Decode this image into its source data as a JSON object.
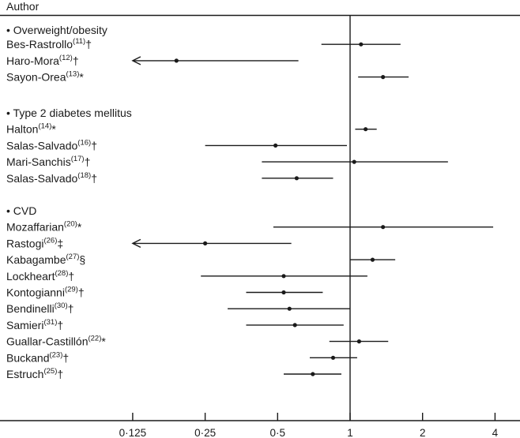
{
  "chart_data": {
    "type": "forest",
    "title": "",
    "column_header": "Author",
    "xscale": "log2",
    "xlim": [
      0.09,
      4.3
    ],
    "reference_value": 1,
    "xticks": [
      0.125,
      0.25,
      0.5,
      1,
      2,
      4
    ],
    "xtick_labels": [
      "0·125",
      "0·25",
      "0·5",
      "1",
      "2",
      "4"
    ],
    "groups": [
      {
        "name": "Overweight/obesity",
        "studies": [
          {
            "author": "Bes-Rastrollo",
            "ref": "(11)",
            "mark": "†",
            "estimate": 1.11,
            "lower": 0.76,
            "upper": 1.62,
            "lower_truncated": false
          },
          {
            "author": "Haro-Mora",
            "ref": "(12)",
            "mark": "†",
            "estimate": 0.19,
            "lower": 0.125,
            "upper": 0.61,
            "lower_truncated": true
          },
          {
            "author": "Sayon-Orea",
            "ref": "(13)",
            "mark": "*",
            "estimate": 1.37,
            "lower": 1.08,
            "upper": 1.75,
            "lower_truncated": false
          }
        ]
      },
      {
        "name": "Type 2 diabetes mellitus",
        "studies": [
          {
            "author": "Halton",
            "ref": "(14)",
            "mark": "*",
            "estimate": 1.16,
            "lower": 1.05,
            "upper": 1.29,
            "lower_truncated": false
          },
          {
            "author": "Salas-Salvado",
            "ref": "(16)",
            "mark": "†",
            "estimate": 0.49,
            "lower": 0.25,
            "upper": 0.97,
            "lower_truncated": false
          },
          {
            "author": "Mari-Sanchis",
            "ref": "(17)",
            "mark": "†",
            "estimate": 1.04,
            "lower": 0.43,
            "upper": 2.55,
            "lower_truncated": false
          },
          {
            "author": "Salas-Salvado",
            "ref": "(18)",
            "mark": "†",
            "estimate": 0.6,
            "lower": 0.43,
            "upper": 0.85,
            "lower_truncated": false
          }
        ]
      },
      {
        "name": "CVD",
        "studies": [
          {
            "author": "Mozaffarian",
            "ref": "(20)",
            "mark": "*",
            "estimate": 1.37,
            "lower": 0.48,
            "upper": 3.93,
            "lower_truncated": false
          },
          {
            "author": "Rastogi",
            "ref": "(26)",
            "mark": "‡",
            "estimate": 0.25,
            "lower": 0.125,
            "upper": 0.57,
            "lower_truncated": true
          },
          {
            "author": "Kabagambe",
            "ref": "(27)",
            "mark": "§",
            "estimate": 1.24,
            "lower": 1.0,
            "upper": 1.54,
            "lower_truncated": false
          },
          {
            "author": "Lockheart",
            "ref": "(28)",
            "mark": "†",
            "estimate": 0.53,
            "lower": 0.24,
            "upper": 1.18,
            "lower_truncated": false
          },
          {
            "author": "Kontogianni",
            "ref": "(29)",
            "mark": "†",
            "estimate": 0.53,
            "lower": 0.37,
            "upper": 0.77,
            "lower_truncated": false
          },
          {
            "author": "Bendinelli",
            "ref": "(30)",
            "mark": "†",
            "estimate": 0.56,
            "lower": 0.31,
            "upper": 1.0,
            "lower_truncated": false
          },
          {
            "author": "Samieri",
            "ref": "(31)",
            "mark": "†",
            "estimate": 0.59,
            "lower": 0.37,
            "upper": 0.94,
            "lower_truncated": false
          },
          {
            "author": "Guallar-Castillón",
            "ref": "(22)",
            "mark": "*",
            "estimate": 1.09,
            "lower": 0.82,
            "upper": 1.44,
            "lower_truncated": false
          },
          {
            "author": "Buckand",
            "ref": "(23)",
            "mark": "†",
            "estimate": 0.85,
            "lower": 0.68,
            "upper": 1.07,
            "lower_truncated": false
          },
          {
            "author": "Estruch",
            "ref": "(25)",
            "mark": "†",
            "estimate": 0.7,
            "lower": 0.53,
            "upper": 0.92,
            "lower_truncated": false
          }
        ]
      }
    ],
    "grid": false,
    "legend": "none"
  },
  "colors": {
    "ink": "#1a1a1a",
    "background": "#ffffff"
  }
}
